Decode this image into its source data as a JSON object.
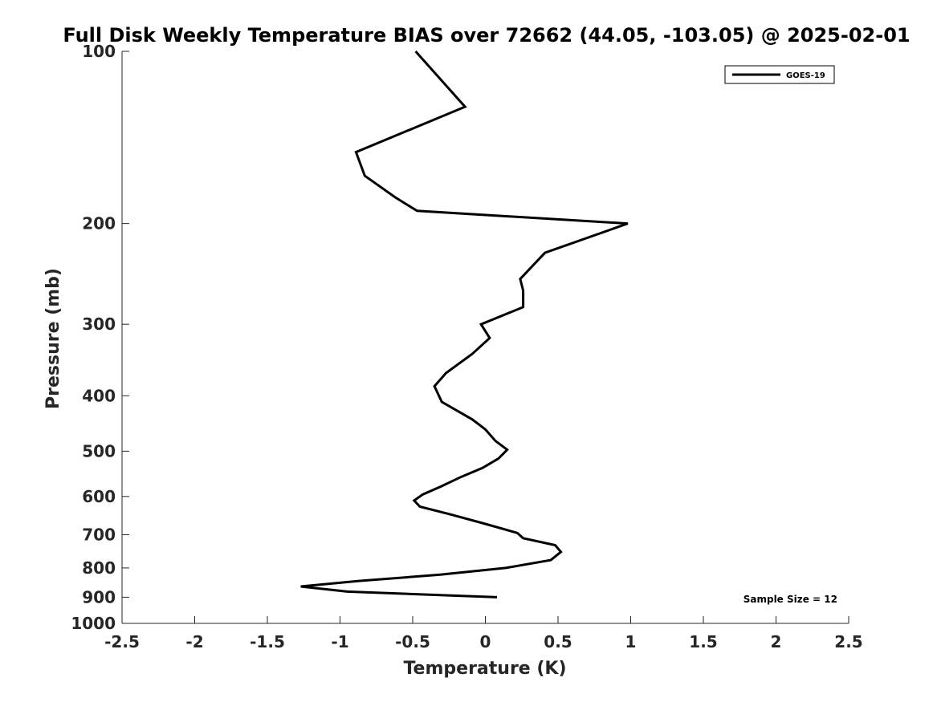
{
  "chart_data": {
    "type": "line",
    "title": "Full Disk Weekly Temperature BIAS over 72662 (44.05, -103.05) @ 2025-02-01",
    "xlabel": "Temperature (K)",
    "ylabel": "Pressure (mb)",
    "xlim": [
      -2.5,
      2.5
    ],
    "ylim": [
      100,
      1000
    ],
    "y_scale": "log",
    "y_reversed": true,
    "x_ticks": [
      "-2.5",
      "-2",
      "-1.5",
      "-1",
      "-0.5",
      "0",
      "0.5",
      "1",
      "1.5",
      "2",
      "2.5"
    ],
    "y_ticks": [
      "100",
      "200",
      "300",
      "400",
      "500",
      "600",
      "700",
      "800",
      "900",
      "1000"
    ],
    "grid": false,
    "legend_position": "top-right",
    "series": [
      {
        "name": "GOES-19",
        "color": "#000000",
        "points": [
          {
            "x": -0.48,
            "p": 100
          },
          {
            "x": -0.14,
            "p": 125
          },
          {
            "x": -0.89,
            "p": 150
          },
          {
            "x": -0.83,
            "p": 165
          },
          {
            "x": -0.62,
            "p": 180
          },
          {
            "x": -0.47,
            "p": 190
          },
          {
            "x": 0.98,
            "p": 200
          },
          {
            "x": 0.41,
            "p": 225
          },
          {
            "x": 0.24,
            "p": 250
          },
          {
            "x": 0.26,
            "p": 262
          },
          {
            "x": 0.26,
            "p": 280
          },
          {
            "x": -0.03,
            "p": 300
          },
          {
            "x": 0.03,
            "p": 317
          },
          {
            "x": -0.09,
            "p": 338
          },
          {
            "x": -0.27,
            "p": 365
          },
          {
            "x": -0.35,
            "p": 385
          },
          {
            "x": -0.3,
            "p": 410
          },
          {
            "x": -0.09,
            "p": 440
          },
          {
            "x": 0.0,
            "p": 458
          },
          {
            "x": 0.07,
            "p": 480
          },
          {
            "x": 0.15,
            "p": 497
          },
          {
            "x": 0.09,
            "p": 515
          },
          {
            "x": -0.02,
            "p": 535
          },
          {
            "x": -0.17,
            "p": 555
          },
          {
            "x": -0.31,
            "p": 577
          },
          {
            "x": -0.43,
            "p": 595
          },
          {
            "x": -0.49,
            "p": 610
          },
          {
            "x": -0.45,
            "p": 625
          },
          {
            "x": -0.24,
            "p": 645
          },
          {
            "x": 0.0,
            "p": 670
          },
          {
            "x": 0.22,
            "p": 695
          },
          {
            "x": 0.26,
            "p": 710
          },
          {
            "x": 0.48,
            "p": 730
          },
          {
            "x": 0.52,
            "p": 750
          },
          {
            "x": 0.45,
            "p": 775
          },
          {
            "x": 0.14,
            "p": 800
          },
          {
            "x": -0.31,
            "p": 822
          },
          {
            "x": -0.87,
            "p": 843
          },
          {
            "x": -1.27,
            "p": 862
          },
          {
            "x": -0.95,
            "p": 880
          },
          {
            "x": 0.08,
            "p": 900
          }
        ]
      }
    ],
    "annotations": [
      "Sample Size = 12"
    ]
  }
}
